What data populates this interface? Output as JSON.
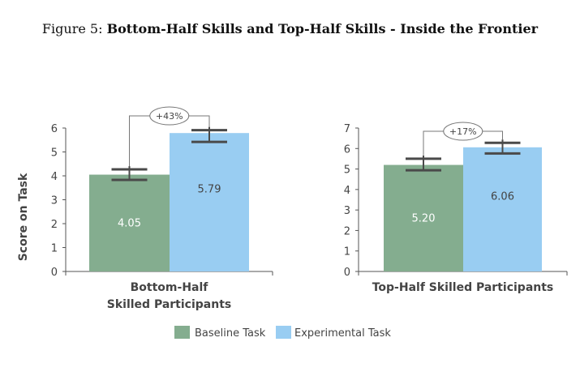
{
  "figure": {
    "prefix": "Figure 5:",
    "title": "Bottom-Half Skills and Top-Half Skills - Inside the Frontier"
  },
  "chart_data": [
    {
      "type": "bar",
      "title": "Bottom-Half Skilled Participants",
      "category_lines": [
        "Bottom-Half",
        "Skilled Participants"
      ],
      "ylabel": "Score on Task",
      "ylim": [
        0,
        6
      ],
      "yticks": [
        0,
        1,
        2,
        3,
        4,
        5,
        6
      ],
      "series": [
        {
          "name": "Baseline Task",
          "value": 4.05,
          "label": "4.05",
          "error": [
            3.83,
            4.27
          ]
        },
        {
          "name": "Experimental Task",
          "value": 5.79,
          "label": "5.79",
          "error": [
            5.42,
            5.91
          ]
        }
      ],
      "annotation": "+43%"
    },
    {
      "type": "bar",
      "title": "Top-Half Skilled Participants",
      "category_lines": [
        "Top-Half Skilled Participants"
      ],
      "ylabel": "",
      "ylim": [
        0,
        7
      ],
      "yticks": [
        0,
        1,
        2,
        3,
        4,
        5,
        6,
        7
      ],
      "series": [
        {
          "name": "Baseline Task",
          "value": 5.2,
          "label": "5.20",
          "error": [
            4.94,
            5.5
          ]
        },
        {
          "name": "Experimental Task",
          "value": 6.06,
          "label": "6.06",
          "error": [
            5.76,
            6.28
          ]
        }
      ],
      "annotation": "+17%"
    }
  ],
  "legend": [
    {
      "label": "Baseline Task",
      "color": "#84ad8f"
    },
    {
      "label": "Experimental Task",
      "color": "#99cdf2"
    }
  ],
  "colors": {
    "axis": "#555555",
    "error": "#4a4a4a",
    "label_on_green": "#ffffff",
    "label_on_blue": "#444444"
  }
}
